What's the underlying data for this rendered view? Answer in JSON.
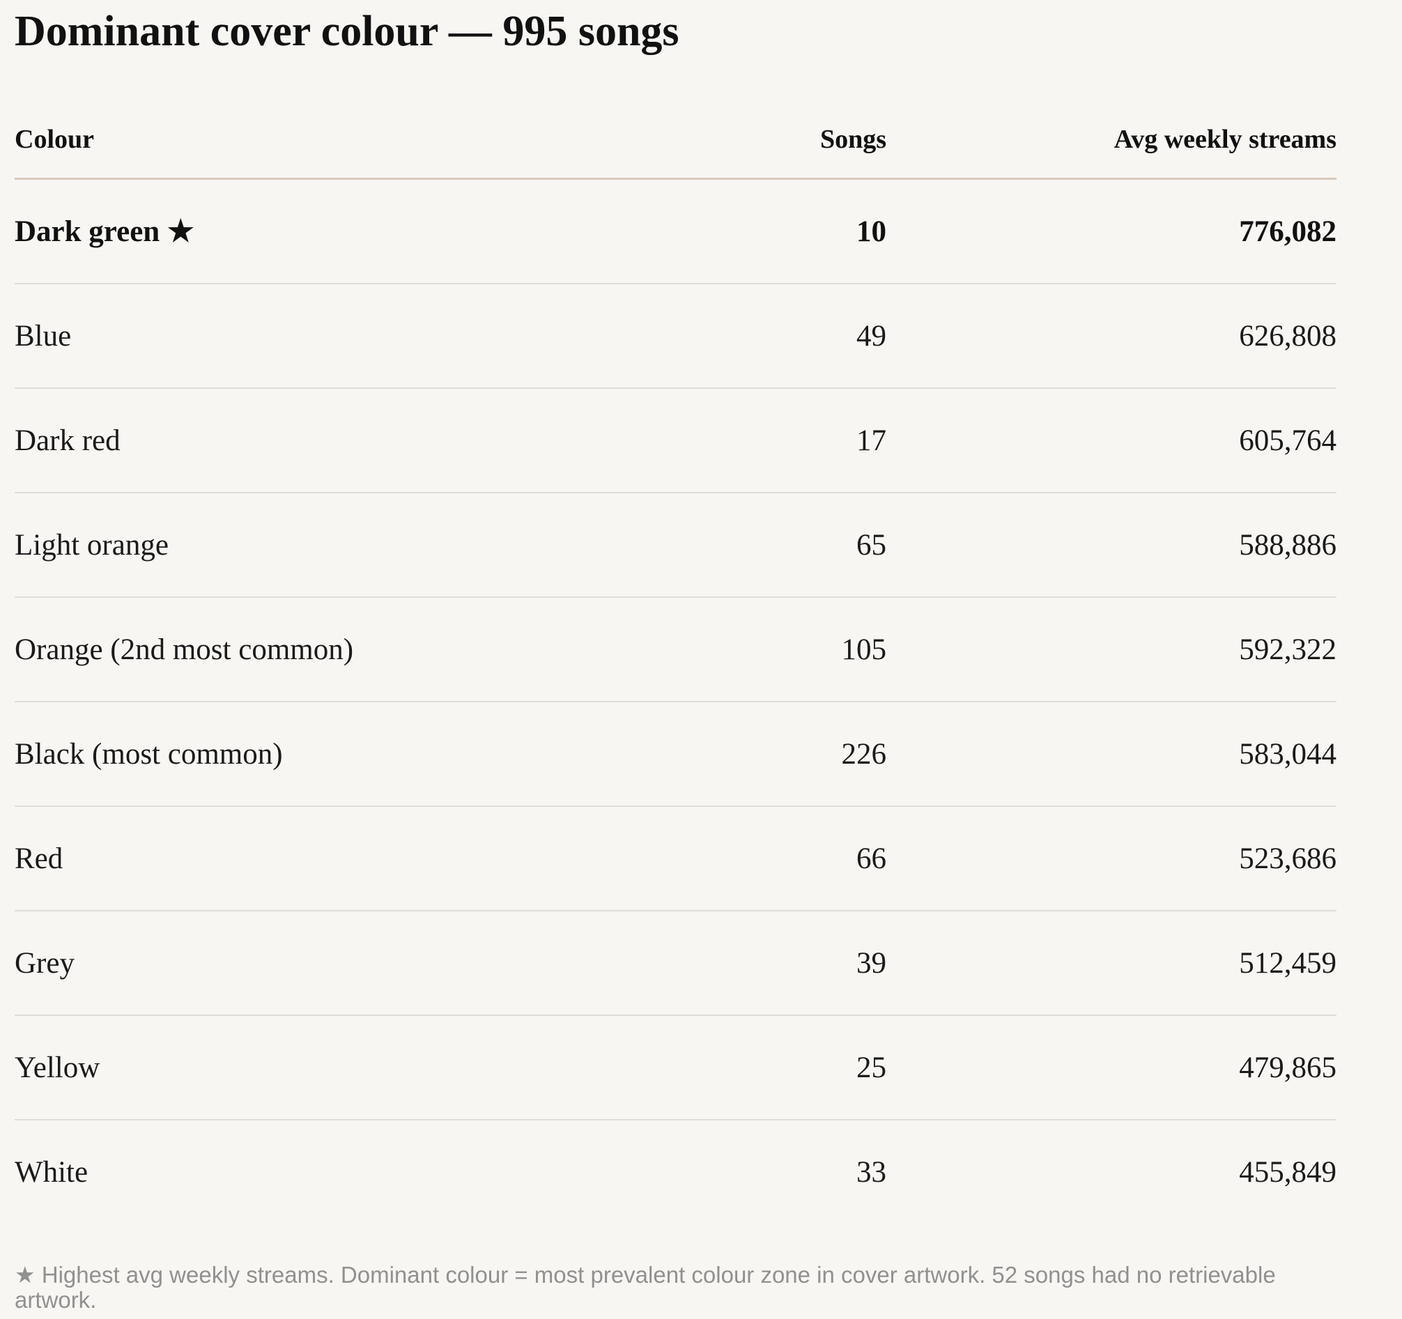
{
  "title": "Dominant cover colour — 995 songs",
  "chart_data": {
    "type": "table",
    "columns": [
      "Colour",
      "Songs",
      "Avg weekly streams"
    ],
    "rows": [
      {
        "colour": "Dark green ★",
        "songs": "10",
        "streams": "776,082",
        "highlight": true
      },
      {
        "colour": "Blue",
        "songs": "49",
        "streams": "626,808"
      },
      {
        "colour": "Dark red",
        "songs": "17",
        "streams": "605,764"
      },
      {
        "colour": "Light orange",
        "songs": "65",
        "streams": "588,886"
      },
      {
        "colour": "Orange (2nd most common)",
        "songs": "105",
        "streams": "592,322"
      },
      {
        "colour": "Black (most common)",
        "songs": "226",
        "streams": "583,044"
      },
      {
        "colour": "Red",
        "songs": "66",
        "streams": "523,686"
      },
      {
        "colour": "Grey",
        "songs": "39",
        "streams": "512,459"
      },
      {
        "colour": "Yellow",
        "songs": "25",
        "streams": "479,865"
      },
      {
        "colour": "White",
        "songs": "33",
        "streams": "455,849"
      }
    ]
  },
  "footnote": "★ Highest avg weekly streams. Dominant colour = most prevalent colour zone in cover artwork. 52 songs had no retrievable artwork."
}
